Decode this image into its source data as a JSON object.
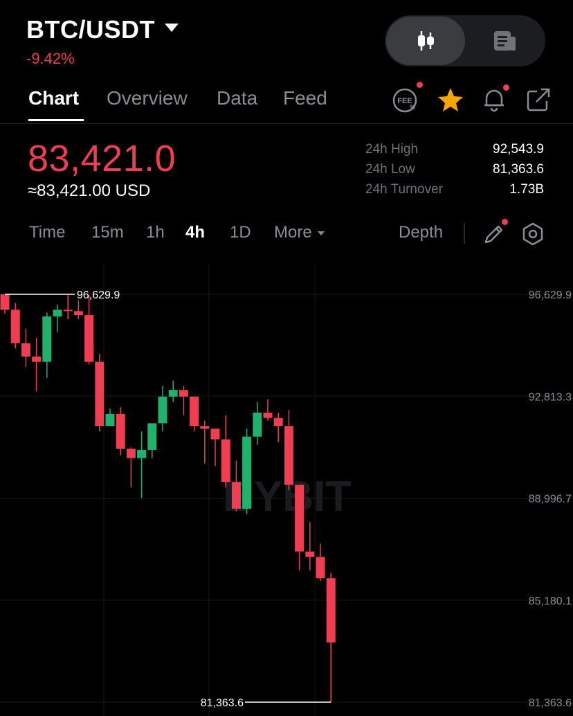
{
  "header": {
    "pair": "BTC/USDT",
    "change": "-9.42%",
    "view_toggle": {
      "candles_icon": "candlestick-icon",
      "info_icon": "document-icon"
    }
  },
  "tabs": [
    {
      "label": "Chart",
      "active": true
    },
    {
      "label": "Overview",
      "active": false
    },
    {
      "label": "Data",
      "active": false
    },
    {
      "label": "Feed",
      "active": false
    }
  ],
  "header_icons": [
    "fee-icon",
    "star-icon",
    "bell-icon",
    "share-icon"
  ],
  "price": {
    "last": "83,421.0",
    "usd": "≈83,421.00 USD",
    "stats": [
      {
        "label": "24h High",
        "value": "92,543.9"
      },
      {
        "label": "24h Low",
        "value": "81,363.6"
      },
      {
        "label": "24h Turnover",
        "value": "1.73B"
      }
    ]
  },
  "intervals": [
    {
      "label": "Time",
      "active": false
    },
    {
      "label": "15m",
      "active": false
    },
    {
      "label": "1h",
      "active": false
    },
    {
      "label": "4h",
      "active": true
    },
    {
      "label": "1D",
      "active": false
    },
    {
      "label": "More",
      "active": false
    }
  ],
  "depth_label": "Depth",
  "colors": {
    "up": "#20b26c",
    "down": "#ef3e52",
    "accent": "#f7a600"
  },
  "chart_data": {
    "type": "candlestick",
    "watermark": "BYBIT",
    "y_ticks": [
      "96,629.9",
      "92,813.3",
      "88,996.7",
      "85,180.1",
      "81,363.6"
    ],
    "ylim": [
      81363.6,
      96629.9
    ],
    "high_marker": "96,629.9",
    "low_marker": "81,363.6",
    "candles": [
      {
        "o": 96629.9,
        "h": 96629.9,
        "l": 95900,
        "c": 96050
      },
      {
        "o": 96050,
        "h": 96300,
        "l": 94600,
        "c": 94800
      },
      {
        "o": 94800,
        "h": 95350,
        "l": 93900,
        "c": 94300
      },
      {
        "o": 94300,
        "h": 95000,
        "l": 93000,
        "c": 94100
      },
      {
        "o": 94100,
        "h": 95950,
        "l": 93500,
        "c": 95800
      },
      {
        "o": 95800,
        "h": 96250,
        "l": 95200,
        "c": 96050
      },
      {
        "o": 96050,
        "h": 96600,
        "l": 95700,
        "c": 96000
      },
      {
        "o": 96000,
        "h": 96400,
        "l": 95700,
        "c": 95850
      },
      {
        "o": 95850,
        "h": 96600,
        "l": 94000,
        "c": 94100
      },
      {
        "o": 94100,
        "h": 94400,
        "l": 91500,
        "c": 91700
      },
      {
        "o": 91700,
        "h": 92350,
        "l": 91700,
        "c": 92150
      },
      {
        "o": 92150,
        "h": 92400,
        "l": 90600,
        "c": 90850
      },
      {
        "o": 90850,
        "h": 90900,
        "l": 89400,
        "c": 90500
      },
      {
        "o": 90500,
        "h": 91500,
        "l": 89000,
        "c": 90800
      },
      {
        "o": 90800,
        "h": 91800,
        "l": 90500,
        "c": 91800
      },
      {
        "o": 91800,
        "h": 93200,
        "l": 91500,
        "c": 92800
      },
      {
        "o": 92800,
        "h": 93400,
        "l": 92600,
        "c": 93050
      },
      {
        "o": 93050,
        "h": 93200,
        "l": 92100,
        "c": 92800
      },
      {
        "o": 92800,
        "h": 92800,
        "l": 91500,
        "c": 91700
      },
      {
        "o": 91700,
        "h": 91900,
        "l": 90300,
        "c": 91600
      },
      {
        "o": 91600,
        "h": 91600,
        "l": 90200,
        "c": 91200
      },
      {
        "o": 91200,
        "h": 92100,
        "l": 89400,
        "c": 89600
      },
      {
        "o": 89600,
        "h": 90400,
        "l": 88500,
        "c": 88600
      },
      {
        "o": 88600,
        "h": 91600,
        "l": 88400,
        "c": 91300
      },
      {
        "o": 91300,
        "h": 92600,
        "l": 91000,
        "c": 92200
      },
      {
        "o": 92200,
        "h": 92700,
        "l": 91900,
        "c": 92000
      },
      {
        "o": 92000,
        "h": 92200,
        "l": 91100,
        "c": 91700
      },
      {
        "o": 91700,
        "h": 92300,
        "l": 89300,
        "c": 89500
      },
      {
        "o": 89500,
        "h": 89500,
        "l": 86300,
        "c": 87000
      },
      {
        "o": 87000,
        "h": 88100,
        "l": 86300,
        "c": 86800
      },
      {
        "o": 86800,
        "h": 87300,
        "l": 85900,
        "c": 86000
      },
      {
        "o": 86000,
        "h": 86200,
        "l": 81363.6,
        "c": 83600
      }
    ]
  }
}
